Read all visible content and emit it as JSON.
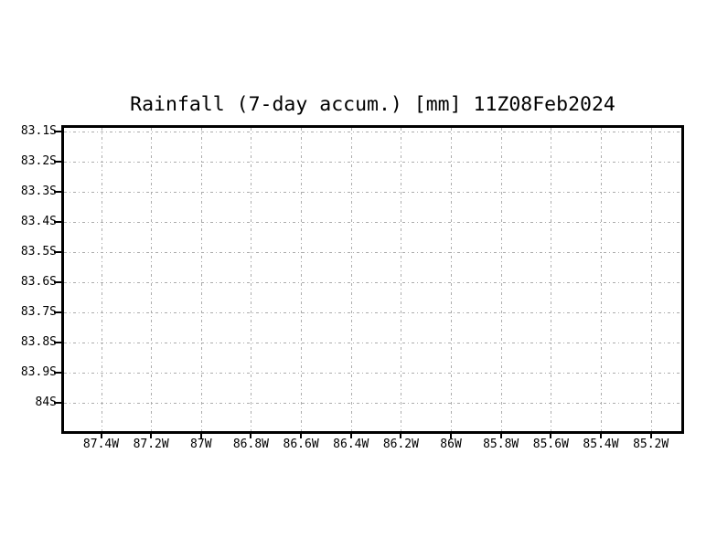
{
  "colors": {
    "background": "#ffffff",
    "frame": "#000000",
    "grid": "#ababab",
    "text": "#000000"
  },
  "chart_data": {
    "type": "heatmap",
    "title": "Rainfall (7-day accum.) [mm] 11Z08Feb2024",
    "subtitle": "",
    "xlabel": "",
    "ylabel": "",
    "x_tick_labels": [
      "87.4W",
      "87.2W",
      "87W",
      "86.8W",
      "86.6W",
      "86.4W",
      "86.2W",
      "86W",
      "85.8W",
      "85.6W",
      "85.4W",
      "85.2W"
    ],
    "y_tick_labels": [
      "83.1S",
      "83.2S",
      "83.3S",
      "83.4S",
      "83.5S",
      "83.6S",
      "83.7S",
      "83.8S",
      "83.9S",
      "84S"
    ],
    "xlim_deg_west": [
      87.56,
      85.07
    ],
    "ylim_deg_south": [
      83.07,
      84.09
    ],
    "grid": true,
    "grid_style": "gray dash-dot",
    "legend": null,
    "series": [],
    "no_data_rendered": true
  }
}
